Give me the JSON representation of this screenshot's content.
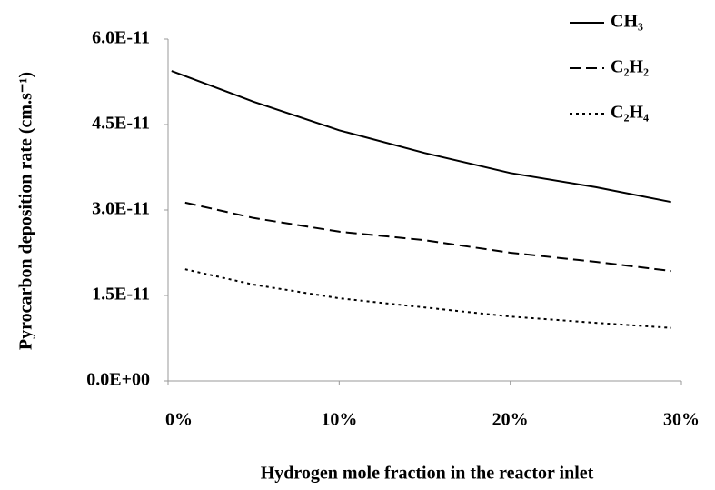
{
  "chart_data": {
    "type": "line",
    "xlabel": "Hydrogen mole fraction in the reactor inlet",
    "ylabel": "Pyrocarbon deposition rate  (cm.s⁻¹)",
    "xlim": [
      0,
      30
    ],
    "xticks": [
      {
        "value": 0,
        "label": "0%"
      },
      {
        "value": 10,
        "label": "10%"
      },
      {
        "value": 20,
        "label": "20%"
      },
      {
        "value": 30,
        "label": "30%"
      }
    ],
    "ylim": [
      0,
      6e-11
    ],
    "yticks": [
      {
        "value": 0,
        "label": "0.0E+00"
      },
      {
        "value": 1.5e-11,
        "label": "1.5E-11"
      },
      {
        "value": 3e-11,
        "label": "3.0E-11"
      },
      {
        "value": 4.5e-11,
        "label": "4.5E-11"
      },
      {
        "value": 6e-11,
        "label": "6.0E-11"
      }
    ],
    "grid": false,
    "legend": "top-right",
    "series": [
      {
        "name": "CH₃",
        "color": "#000000",
        "dash": "solid",
        "x": [
          0.2,
          5,
          10,
          15,
          20,
          25,
          29.4
        ],
        "values": [
          5.44e-11,
          4.9e-11,
          4.4e-11,
          4e-11,
          3.65e-11,
          3.4e-11,
          3.14e-11
        ]
      },
      {
        "name": "C₂H₂",
        "color": "#000000",
        "dash": "dashed",
        "x": [
          1,
          5,
          10,
          15,
          20,
          25,
          29.4
        ],
        "values": [
          3.13e-11,
          2.86e-11,
          2.62e-11,
          2.47e-11,
          2.25e-11,
          2.09e-11,
          1.93e-11
        ]
      },
      {
        "name": "C₂H₄",
        "color": "#000000",
        "dash": "dotted",
        "x": [
          1,
          5,
          10,
          15,
          20,
          25,
          29.4
        ],
        "values": [
          1.96e-11,
          1.69e-11,
          1.45e-11,
          1.29e-11,
          1.13e-11,
          1.02e-11,
          9.3e-12
        ]
      }
    ]
  }
}
